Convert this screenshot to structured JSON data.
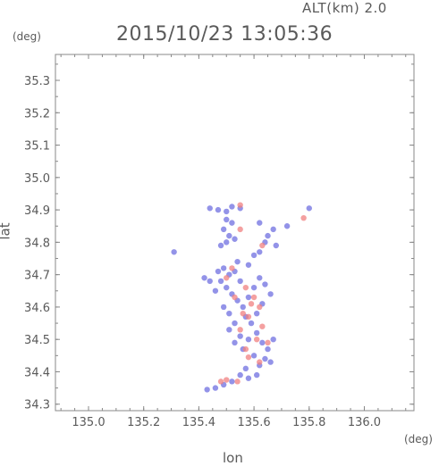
{
  "chart_data": {
    "type": "scatter",
    "title": "2015/10/23 13:05:36",
    "subtitle": "ALT(km) 2.0",
    "xlabel": "lon",
    "ylabel": "lat",
    "x_unit": "(deg)",
    "y_unit": "(deg)",
    "xlim": [
      134.88,
      136.18
    ],
    "ylim": [
      34.28,
      35.38
    ],
    "xticks": [
      "135.0",
      "135.2",
      "135.4",
      "135.6",
      "135.8",
      "136.0"
    ],
    "yticks": [
      "34.3",
      "34.4",
      "34.5",
      "34.6",
      "34.7",
      "34.8",
      "34.9",
      "35.0",
      "35.1",
      "35.2",
      "35.3"
    ],
    "grid": false,
    "colors": {
      "positive": "#f08080",
      "negative": "#6f6fe0",
      "axis": "#888888"
    },
    "series": [
      {
        "name": "",
        "color": "#6f6fe0",
        "points": [
          [
            135.44,
            34.905
          ],
          [
            135.47,
            34.9
          ],
          [
            135.5,
            34.895
          ],
          [
            135.52,
            34.91
          ],
          [
            135.55,
            34.905
          ],
          [
            135.5,
            34.87
          ],
          [
            135.52,
            34.86
          ],
          [
            135.49,
            34.84
          ],
          [
            135.51,
            34.82
          ],
          [
            135.5,
            34.8
          ],
          [
            135.48,
            34.79
          ],
          [
            135.53,
            34.81
          ],
          [
            135.62,
            34.86
          ],
          [
            135.65,
            34.82
          ],
          [
            135.67,
            34.84
          ],
          [
            135.68,
            34.79
          ],
          [
            135.64,
            34.8
          ],
          [
            135.72,
            34.85
          ],
          [
            135.8,
            34.905
          ],
          [
            135.6,
            34.76
          ],
          [
            135.62,
            34.77
          ],
          [
            135.31,
            34.77
          ],
          [
            135.47,
            34.71
          ],
          [
            135.49,
            34.72
          ],
          [
            135.51,
            34.7
          ],
          [
            135.53,
            34.71
          ],
          [
            135.55,
            34.68
          ],
          [
            135.48,
            34.68
          ],
          [
            135.46,
            34.65
          ],
          [
            135.5,
            34.66
          ],
          [
            135.52,
            34.64
          ],
          [
            135.54,
            34.62
          ],
          [
            135.49,
            34.6
          ],
          [
            135.51,
            34.58
          ],
          [
            135.56,
            34.6
          ],
          [
            135.58,
            34.63
          ],
          [
            135.6,
            34.66
          ],
          [
            135.62,
            34.69
          ],
          [
            135.64,
            34.67
          ],
          [
            135.66,
            34.64
          ],
          [
            135.63,
            34.61
          ],
          [
            135.61,
            34.58
          ],
          [
            135.59,
            34.55
          ],
          [
            135.57,
            34.57
          ],
          [
            135.53,
            34.55
          ],
          [
            135.51,
            34.53
          ],
          [
            135.55,
            34.51
          ],
          [
            135.53,
            34.49
          ],
          [
            135.56,
            34.47
          ],
          [
            135.58,
            34.5
          ],
          [
            135.61,
            34.52
          ],
          [
            135.63,
            34.49
          ],
          [
            135.65,
            34.47
          ],
          [
            135.67,
            34.5
          ],
          [
            135.64,
            34.44
          ],
          [
            135.62,
            34.42
          ],
          [
            135.66,
            34.43
          ],
          [
            135.6,
            34.45
          ],
          [
            135.57,
            34.41
          ],
          [
            135.55,
            34.39
          ],
          [
            135.52,
            34.37
          ],
          [
            135.49,
            34.36
          ],
          [
            135.46,
            34.35
          ],
          [
            135.43,
            34.345
          ],
          [
            135.58,
            34.38
          ],
          [
            135.61,
            34.39
          ],
          [
            135.44,
            34.68
          ],
          [
            135.42,
            34.69
          ],
          [
            135.54,
            34.74
          ],
          [
            135.58,
            34.73
          ]
        ]
      },
      {
        "name": "",
        "color": "#f08080",
        "points": [
          [
            135.55,
            34.915
          ],
          [
            135.78,
            34.875
          ],
          [
            135.63,
            34.79
          ],
          [
            135.55,
            34.84
          ],
          [
            135.52,
            34.72
          ],
          [
            135.5,
            34.69
          ],
          [
            135.57,
            34.66
          ],
          [
            135.53,
            34.63
          ],
          [
            135.59,
            34.61
          ],
          [
            135.56,
            34.58
          ],
          [
            135.6,
            34.63
          ],
          [
            135.62,
            34.6
          ],
          [
            135.58,
            34.57
          ],
          [
            135.63,
            34.54
          ],
          [
            135.55,
            34.53
          ],
          [
            135.61,
            34.5
          ],
          [
            135.65,
            34.49
          ],
          [
            135.58,
            34.445
          ],
          [
            135.62,
            34.43
          ],
          [
            135.54,
            34.37
          ],
          [
            135.5,
            34.375
          ],
          [
            135.48,
            34.37
          ],
          [
            135.57,
            34.47
          ]
        ]
      }
    ]
  }
}
